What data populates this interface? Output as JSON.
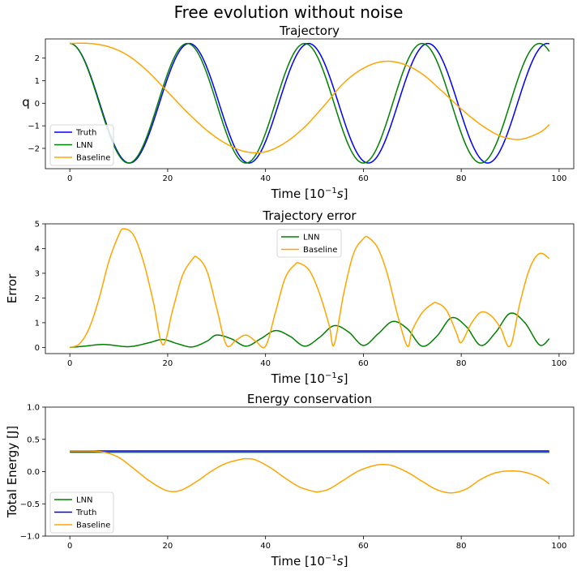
{
  "figure": {
    "title": "Free evolution without noise"
  },
  "chart_data": [
    {
      "type": "line",
      "title": "Trajectory",
      "xlabel": "Time [10⁻¹s]",
      "ylabel": "q",
      "xlim": [
        -5,
        103
      ],
      "ylim": [
        -2.9,
        2.85
      ],
      "xticks": [
        0,
        20,
        40,
        60,
        80,
        100
      ],
      "yticks": [
        -2,
        -1,
        0,
        1,
        2
      ],
      "grid": false,
      "legend_position": "lower-left",
      "series": [
        {
          "name": "Truth",
          "color": "#0000ff",
          "model": {
            "kind": "cos",
            "amp": 2.65,
            "period": 24.4,
            "phase": 0
          }
        },
        {
          "name": "LNN",
          "color": "#008000",
          "model": {
            "kind": "cos",
            "amp": 2.65,
            "period": 24.0,
            "phase": 0
          }
        },
        {
          "name": "Baseline",
          "color": "#ffa500",
          "model": {
            "kind": "points",
            "x": [
              0,
              4,
              8,
              12,
              16,
              20,
              24,
              28,
              32,
              36,
              40,
              44,
              48,
              52,
              56,
              60,
              64,
              68,
              72,
              76,
              80,
              84,
              88,
              92,
              96,
              98
            ],
            "y": [
              2.65,
              2.65,
              2.5,
              2.1,
              1.4,
              0.5,
              -0.4,
              -1.2,
              -1.8,
              -2.15,
              -2.15,
              -1.75,
              -1.05,
              -0.1,
              0.9,
              1.55,
              1.85,
              1.75,
              1.3,
              0.55,
              -0.25,
              -0.95,
              -1.45,
              -1.6,
              -1.3,
              -0.95
            ]
          }
        }
      ]
    },
    {
      "type": "line",
      "title": "Trajectory error",
      "xlabel": "Time [10⁻¹s]",
      "ylabel": "Error",
      "xlim": [
        -5,
        103
      ],
      "ylim": [
        -0.25,
        5.0
      ],
      "xticks": [
        0,
        20,
        40,
        60,
        80,
        100
      ],
      "yticks": [
        0,
        1,
        2,
        3,
        4,
        5
      ],
      "grid": false,
      "legend_position": "upper-center",
      "series": [
        {
          "name": "LNN",
          "color": "#008000",
          "model": {
            "kind": "points",
            "x": [
              0,
              3,
              7,
              12,
              16,
              19,
              22,
              25,
              28,
              30,
              33,
              36,
              39,
              42,
              45,
              48,
              51,
              54,
              57,
              60,
              63,
              66,
              69,
              72,
              75,
              78,
              81,
              84,
              87,
              90,
              93,
              96,
              98
            ],
            "y": [
              0,
              0.05,
              0.12,
              0.03,
              0.18,
              0.32,
              0.15,
              0.02,
              0.25,
              0.5,
              0.35,
              0.05,
              0.35,
              0.68,
              0.45,
              0.05,
              0.4,
              0.88,
              0.62,
              0.08,
              0.55,
              1.05,
              0.75,
              0.05,
              0.45,
              1.2,
              0.85,
              0.08,
              0.6,
              1.38,
              1.0,
              0.1,
              0.35
            ]
          }
        },
        {
          "name": "Baseline",
          "color": "#ffa500",
          "model": {
            "kind": "points",
            "x": [
              0,
              2,
              4,
              6,
              8,
              10,
              11,
              13,
              15,
              17,
              19,
              21,
              23,
              25,
              26,
              28,
              30,
              32,
              34,
              36,
              38,
              40,
              42,
              44,
              46,
              47,
              49,
              51,
              53,
              54,
              56,
              58,
              60,
              61,
              63,
              65,
              67,
              69,
              70,
              72,
              74,
              75,
              77,
              79,
              80,
              82,
              84,
              86,
              88,
              90,
              92,
              94,
              96,
              98
            ],
            "y": [
              0,
              0.15,
              0.8,
              2.0,
              3.5,
              4.55,
              4.8,
              4.55,
              3.5,
              1.9,
              0.1,
              1.5,
              2.9,
              3.55,
              3.65,
              3.1,
              1.6,
              0.1,
              0.3,
              0.5,
              0.25,
              0.05,
              1.4,
              2.8,
              3.35,
              3.4,
              3.1,
              2.2,
              0.9,
              0.1,
              2.2,
              3.8,
              4.4,
              4.45,
              4.0,
              2.9,
              1.3,
              0.05,
              0.7,
              1.4,
              1.75,
              1.8,
              1.5,
              0.6,
              0.2,
              0.95,
              1.42,
              1.3,
              0.8,
              0.05,
              1.8,
              3.2,
              3.8,
              3.6
            ]
          }
        }
      ]
    },
    {
      "type": "line",
      "title": "Energy conservation",
      "xlabel": "Time [10⁻¹s]",
      "ylabel": "Total Energy [J]",
      "xlim": [
        -5,
        103
      ],
      "ylim": [
        -1.0,
        1.0
      ],
      "xticks": [
        0,
        20,
        40,
        60,
        80,
        100
      ],
      "yticks": [
        -1.0,
        -0.5,
        0.0,
        0.5,
        1.0
      ],
      "grid": false,
      "legend_position": "lower-left",
      "series": [
        {
          "name": "LNN",
          "color": "#008000",
          "model": {
            "kind": "points",
            "x": [
              0,
              98
            ],
            "y": [
              0.3,
              0.3
            ]
          }
        },
        {
          "name": "Truth",
          "color": "#0000ff",
          "model": {
            "kind": "points",
            "x": [
              0,
              98
            ],
            "y": [
              0.32,
              0.32
            ]
          }
        },
        {
          "name": "Baseline",
          "color": "#ffa500",
          "model": {
            "kind": "points",
            "x": [
              0,
              4,
              7,
              10,
              13,
              16,
              19,
              21,
              23,
              26,
              29,
              32,
              35,
              36,
              38,
              41,
              44,
              47,
              50,
              51,
              53,
              56,
              59,
              62,
              64,
              66,
              69,
              72,
              75,
              78,
              81,
              84,
              87,
              90,
              93,
              96,
              98
            ],
            "y": [
              0.32,
              0.32,
              0.3,
              0.22,
              0.05,
              -0.13,
              -0.27,
              -0.31,
              -0.28,
              -0.15,
              0.01,
              0.13,
              0.19,
              0.2,
              0.18,
              0.06,
              -0.1,
              -0.24,
              -0.31,
              -0.31,
              -0.27,
              -0.13,
              0.01,
              0.09,
              0.11,
              0.09,
              -0.01,
              -0.15,
              -0.28,
              -0.33,
              -0.27,
              -0.12,
              -0.02,
              0.01,
              -0.01,
              -0.09,
              -0.19
            ]
          }
        }
      ]
    }
  ]
}
